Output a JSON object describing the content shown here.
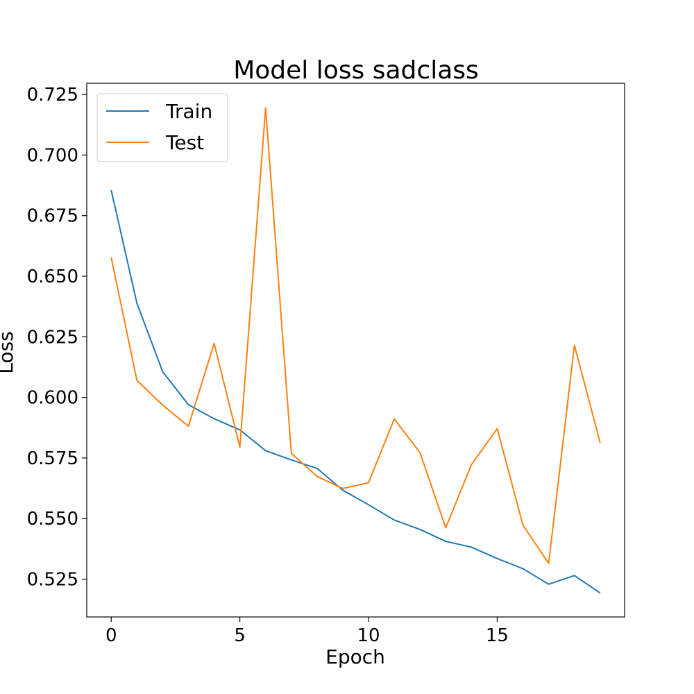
{
  "chart_data": {
    "type": "line",
    "title": "Model loss sadclass",
    "xlabel": "Epoch",
    "ylabel": "Loss",
    "xlim": [
      -0.95,
      19.95
    ],
    "ylim": [
      0.5094,
      0.7296
    ],
    "xticks": [
      0,
      5,
      10,
      15
    ],
    "xtick_labels": [
      "0",
      "5",
      "10",
      "15"
    ],
    "yticks": [
      0.525,
      0.55,
      0.575,
      0.6,
      0.625,
      0.65,
      0.675,
      0.7,
      0.725
    ],
    "ytick_labels": [
      "0.525",
      "0.550",
      "0.575",
      "0.600",
      "0.625",
      "0.650",
      "0.675",
      "0.700",
      "0.725"
    ],
    "grid": false,
    "legend_position": "top-left",
    "x": [
      0,
      1,
      2,
      3,
      4,
      5,
      6,
      7,
      8,
      9,
      10,
      11,
      12,
      13,
      14,
      15,
      16,
      17,
      18,
      19
    ],
    "series": [
      {
        "name": "Train",
        "color": "#1f77b4",
        "values": [
          0.6855,
          0.6388,
          0.6106,
          0.597,
          0.5912,
          0.5866,
          0.578,
          0.5742,
          0.5707,
          0.5617,
          0.5557,
          0.5494,
          0.5455,
          0.5406,
          0.5382,
          0.5335,
          0.5293,
          0.5229,
          0.5265,
          0.5193
        ]
      },
      {
        "name": "Test",
        "color": "#ff7f0e",
        "values": [
          0.6577,
          0.607,
          0.5968,
          0.5881,
          0.6223,
          0.5795,
          0.7195,
          0.5769,
          0.5674,
          0.5624,
          0.5648,
          0.5911,
          0.5772,
          0.5462,
          0.5723,
          0.5871,
          0.5473,
          0.5315,
          0.6215,
          0.5813
        ]
      }
    ]
  }
}
